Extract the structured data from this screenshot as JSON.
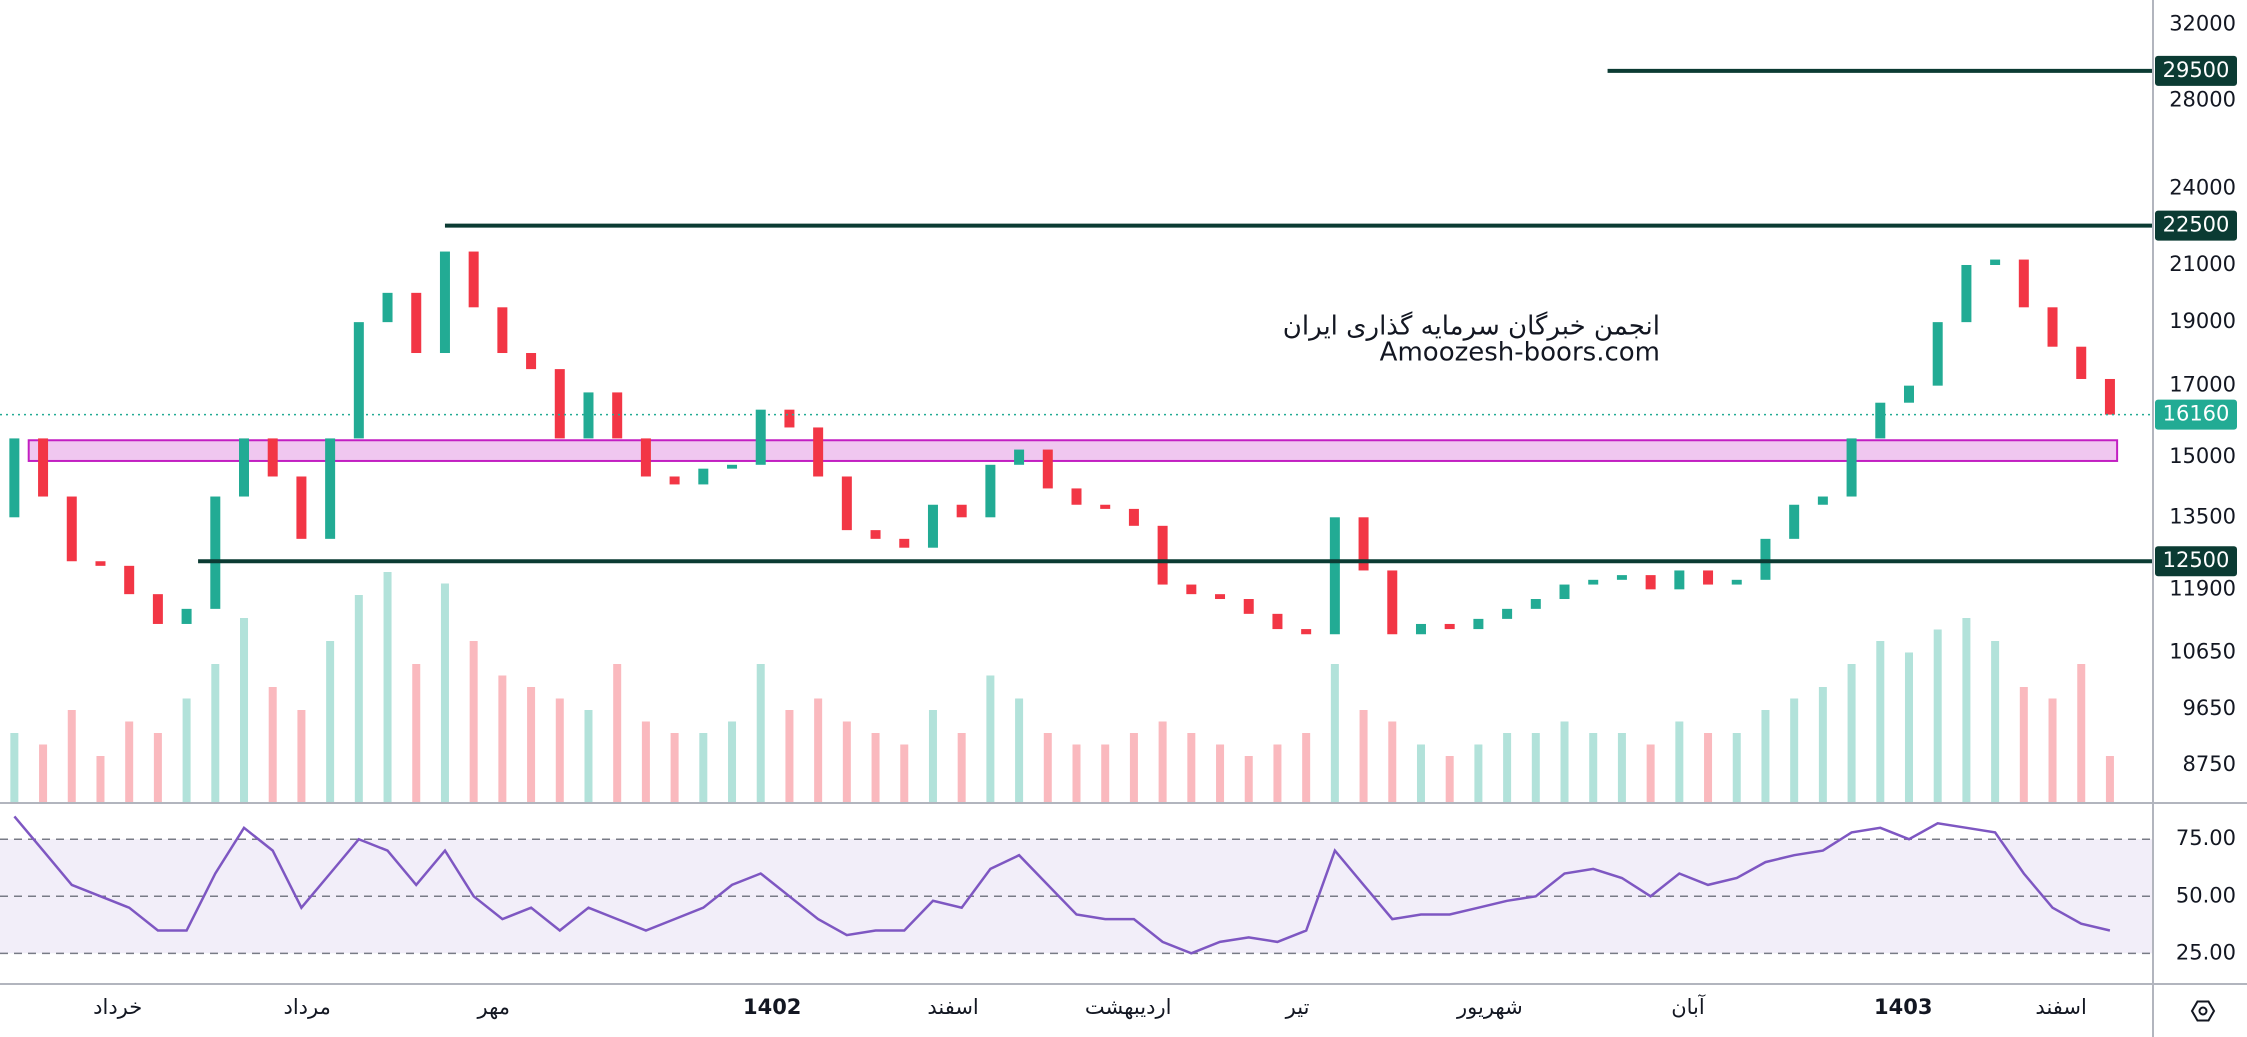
{
  "chart_data": {
    "type": "candlestick",
    "watermark": [
      "انجمن خبرگان سرمایه گذاری ایران",
      "Amoozesh-boors.com"
    ],
    "log_scale": true,
    "up_color": "#22ab94",
    "down_color": "#f23645",
    "xlim": [
      -0.5,
      74.5
    ],
    "xticks": [
      {
        "value": 3.6,
        "label": "خرداد"
      },
      {
        "value": 10.2,
        "label": "مرداد"
      },
      {
        "value": 16.7,
        "label": "مهر"
      },
      {
        "value": 26.4,
        "label": "1402"
      },
      {
        "value": 32.7,
        "label": "اسفند"
      },
      {
        "value": 38.8,
        "label": "اردیبهشت"
      },
      {
        "value": 44.7,
        "label": "تیر"
      },
      {
        "value": 51.4,
        "label": "شهریور"
      },
      {
        "value": 58.3,
        "label": "آبان"
      },
      {
        "value": 65.8,
        "label": "1403"
      },
      {
        "value": 71.3,
        "label": "اسفند"
      }
    ],
    "ylim": [
      8200,
      33400
    ],
    "yticks": [
      32000,
      28000,
      24000,
      21000,
      19000,
      17000,
      15000,
      13500,
      11900,
      10650,
      9650,
      8750
    ],
    "open": [
      13500,
      15500,
      14000,
      12500,
      12400,
      11800,
      11200,
      11500,
      14000,
      15500,
      14500,
      13000,
      15500,
      19000,
      20000,
      18000,
      21500,
      19500,
      18000,
      17500,
      15500,
      16800,
      15500,
      14500,
      14300,
      14700,
      14800,
      16300,
      15800,
      14500,
      13200,
      13000,
      12800,
      13800,
      13500,
      14800,
      15200,
      14200,
      13800,
      13700,
      13300,
      12000,
      11800,
      11700,
      11400,
      11100,
      11000,
      13500,
      12300,
      11000,
      11200,
      11100,
      11300,
      11500,
      11700,
      12000,
      12100,
      12200,
      11900,
      12300,
      12000,
      12100,
      13000,
      13800,
      14000,
      15500,
      16500,
      17000,
      19000,
      21000,
      21200,
      19500,
      18200,
      17200
    ],
    "close": [
      15500,
      14000,
      12500,
      12400,
      11800,
      11200,
      11500,
      14000,
      15500,
      14500,
      13000,
      15500,
      19000,
      20000,
      18000,
      21500,
      19500,
      18000,
      17500,
      15500,
      16800,
      15500,
      14500,
      14300,
      14700,
      14800,
      16300,
      15800,
      14500,
      13200,
      13000,
      12800,
      13800,
      13500,
      14800,
      15200,
      14200,
      13800,
      13700,
      13300,
      12000,
      11800,
      11700,
      11400,
      11100,
      11000,
      13500,
      12300,
      11000,
      11200,
      11100,
      11300,
      11500,
      11700,
      12000,
      12100,
      12200,
      11900,
      12300,
      12000,
      12100,
      13000,
      13800,
      14000,
      15500,
      16500,
      17000,
      19000,
      21000,
      21200,
      19500,
      18200,
      17200,
      16160
    ],
    "volume": [
      30,
      25,
      40,
      20,
      35,
      30,
      45,
      60,
      80,
      50,
      40,
      70,
      90,
      100,
      60,
      95,
      70,
      55,
      50,
      45,
      40,
      60,
      35,
      30,
      30,
      35,
      60,
      40,
      45,
      35,
      30,
      25,
      40,
      30,
      55,
      45,
      30,
      25,
      25,
      30,
      35,
      30,
      25,
      20,
      25,
      30,
      60,
      40,
      35,
      25,
      20,
      25,
      30,
      30,
      35,
      30,
      30,
      25,
      35,
      30,
      30,
      40,
      45,
      50,
      60,
      70,
      65,
      75,
      80,
      70,
      50,
      45,
      60,
      20
    ],
    "levels": [
      {
        "value": 29500,
        "start": 55.5
      },
      {
        "value": 22500,
        "start": 15
      },
      {
        "value": 12500,
        "start": 6.4
      }
    ],
    "level_color": "#0b3b33",
    "last_price": 16160,
    "zone": {
      "low": 14900,
      "high": 15450,
      "start": 0.5,
      "end": 73.25,
      "color": "#c21fc2"
    },
    "rsi": {
      "color": "#7e57c2",
      "ylim": [
        12,
        90
      ],
      "yticks": [
        {
          "value": 75,
          "label": "75.00"
        },
        {
          "value": 50,
          "label": "50.00"
        },
        {
          "value": 25,
          "label": "25.00"
        }
      ],
      "values": [
        85,
        70,
        55,
        50,
        45,
        35,
        35,
        60,
        80,
        70,
        45,
        60,
        75,
        70,
        55,
        70,
        50,
        40,
        45,
        35,
        45,
        40,
        35,
        40,
        45,
        55,
        60,
        50,
        40,
        33,
        35,
        35,
        48,
        45,
        62,
        68,
        55,
        42,
        40,
        40,
        30,
        25,
        30,
        32,
        30,
        35,
        70,
        55,
        40,
        42,
        42,
        45,
        48,
        50,
        60,
        62,
        58,
        50,
        60,
        55,
        58,
        65,
        68,
        70,
        78,
        80,
        75,
        82,
        80,
        78,
        60,
        45,
        38,
        35
      ]
    }
  }
}
